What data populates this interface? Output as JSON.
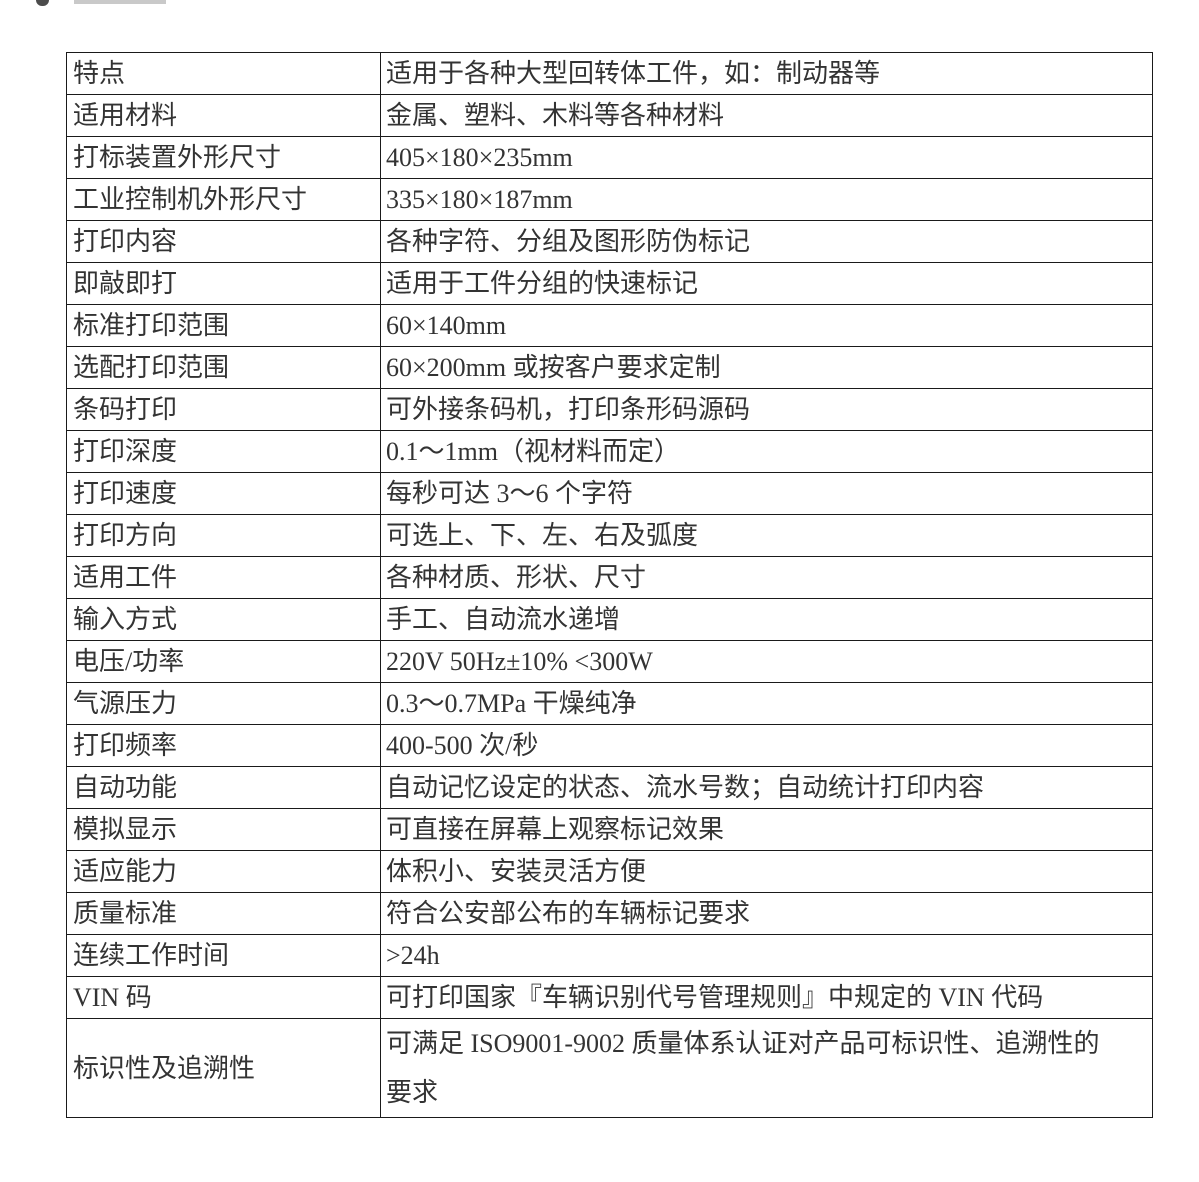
{
  "page": {
    "background": "#ffffff"
  },
  "table": {
    "border_color": "#1a1a1a",
    "text_color": "#333333",
    "columns": [
      "attribute",
      "value"
    ],
    "rows": [
      {
        "label": "特点",
        "value": "适用于各种大型回转体工件，如：制动器等"
      },
      {
        "label": "适用材料",
        "value": "金属、塑料、木料等各种材料"
      },
      {
        "label": "打标装置外形尺寸",
        "value": "405×180×235mm"
      },
      {
        "label": "工业控制机外形尺寸",
        "value": "335×180×187mm"
      },
      {
        "label": "打印内容",
        "value": "各种字符、分组及图形防伪标记"
      },
      {
        "label": "即敲即打",
        "value": "适用于工件分组的快速标记"
      },
      {
        "label": "标准打印范围",
        "value": "60×140mm"
      },
      {
        "label": "选配打印范围",
        "value": "60×200mm 或按客户要求定制"
      },
      {
        "label": "条码打印",
        "value": "可外接条码机，打印条形码源码"
      },
      {
        "label": "打印深度",
        "value": "0.1～1mm（视材料而定）"
      },
      {
        "label": "打印速度",
        "value": "每秒可达 3～6 个字符"
      },
      {
        "label": "打印方向",
        "value": "可选上、下、左、右及弧度"
      },
      {
        "label": "适用工件",
        "value": "各种材质、形状、尺寸"
      },
      {
        "label": "输入方式",
        "value": "手工、自动流水递增"
      },
      {
        "label": "电压/功率",
        "value": "220V 50Hz±10% <300W"
      },
      {
        "label": "气源压力",
        "value": "0.3～0.7MPa 干燥纯净"
      },
      {
        "label": "打印频率",
        "value": "400-500 次/秒"
      },
      {
        "label": "自动功能",
        "value": "自动记忆设定的状态、流水号数；自动统计打印内容"
      },
      {
        "label": "模拟显示",
        "value": "可直接在屏幕上观察标记效果"
      },
      {
        "label": "适应能力",
        "value": "体积小、安装灵活方便"
      },
      {
        "label": "质量标准",
        "value": "符合公安部公布的车辆标记要求"
      },
      {
        "label": "连续工作时间",
        "value": ">24h"
      },
      {
        "label": "VIN 码",
        "value": "可打印国家『车辆识别代号管理规则』中规定的 VIN 代码"
      },
      {
        "label": "标识性及追溯性",
        "value": "可满足 ISO9001-9002 质量体系认证对产品可标识性、追溯性的\n要求"
      }
    ]
  }
}
